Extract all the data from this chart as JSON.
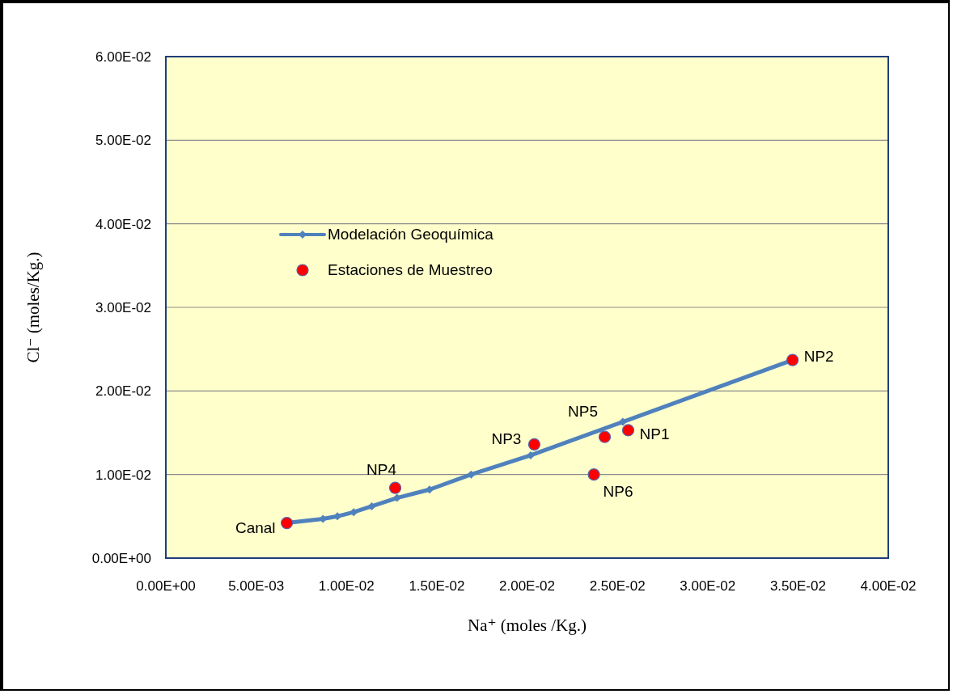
{
  "chart_data": {
    "type": "scatter",
    "xlabel": "Na⁺ (moles /Kg.)",
    "ylabel": "Cl⁻ (moles/Kg.)",
    "xlim": [
      0,
      0.04
    ],
    "xticks": [
      {
        "value": 0,
        "label": "0.00E+00"
      },
      {
        "value": 0.005,
        "label": "5.00E-03"
      },
      {
        "value": 0.01,
        "label": "1.00E-02"
      },
      {
        "value": 0.015,
        "label": "1.50E-02"
      },
      {
        "value": 0.02,
        "label": "2.00E-02"
      },
      {
        "value": 0.025,
        "label": "2.50E-02"
      },
      {
        "value": 0.03,
        "label": "3.00E-02"
      },
      {
        "value": 0.035,
        "label": "3.50E-02"
      },
      {
        "value": 0.04,
        "label": "4.00E-02"
      }
    ],
    "ylim": [
      0,
      0.06
    ],
    "yticks": [
      {
        "value": 0,
        "label": "0.00E+00"
      },
      {
        "value": 0.01,
        "label": "1.00E-02"
      },
      {
        "value": 0.02,
        "label": "2.00E-02"
      },
      {
        "value": 0.03,
        "label": "3.00E-02"
      },
      {
        "value": 0.04,
        "label": "4.00E-02"
      },
      {
        "value": 0.05,
        "label": "5.00E-02"
      },
      {
        "value": 0.06,
        "label": "6.00E-02"
      }
    ],
    "grid": "y",
    "legend": "center",
    "series": [
      {
        "name": "Modelación Geoquímica",
        "type": "line",
        "marker": "diamond",
        "line_style": "solid",
        "color": "#4f81bd",
        "x": [
          0.0067,
          0.0087,
          0.0095,
          0.0104,
          0.0114,
          0.0128,
          0.0146,
          0.0169,
          0.0202,
          0.0253,
          0.0347
        ],
        "values": [
          0.0042,
          0.0047,
          0.005,
          0.0055,
          0.0062,
          0.0072,
          0.0082,
          0.01,
          0.0123,
          0.0163,
          0.0237
        ]
      },
      {
        "name": "Estaciones de Muestreo",
        "type": "scatter",
        "marker": "circle",
        "color": "#ff0000",
        "x": [
          0.0067,
          0.0127,
          0.0204,
          0.0243,
          0.0256,
          0.0237,
          0.0347
        ],
        "values": [
          0.0042,
          0.0084,
          0.0136,
          0.0145,
          0.0153,
          0.01,
          0.0237
        ]
      }
    ],
    "annotations": [
      {
        "text": "Canal",
        "x": 0.0067,
        "y": 0.0042
      },
      {
        "text": "NP4",
        "x": 0.0127,
        "y": 0.0084
      },
      {
        "text": "NP3",
        "x": 0.0204,
        "y": 0.0136
      },
      {
        "text": "NP5",
        "x": 0.0243,
        "y": 0.0145
      },
      {
        "text": "NP1",
        "x": 0.0256,
        "y": 0.0153
      },
      {
        "text": "NP6",
        "x": 0.0237,
        "y": 0.01
      },
      {
        "text": "NP2",
        "x": 0.0347,
        "y": 0.0237
      }
    ]
  }
}
